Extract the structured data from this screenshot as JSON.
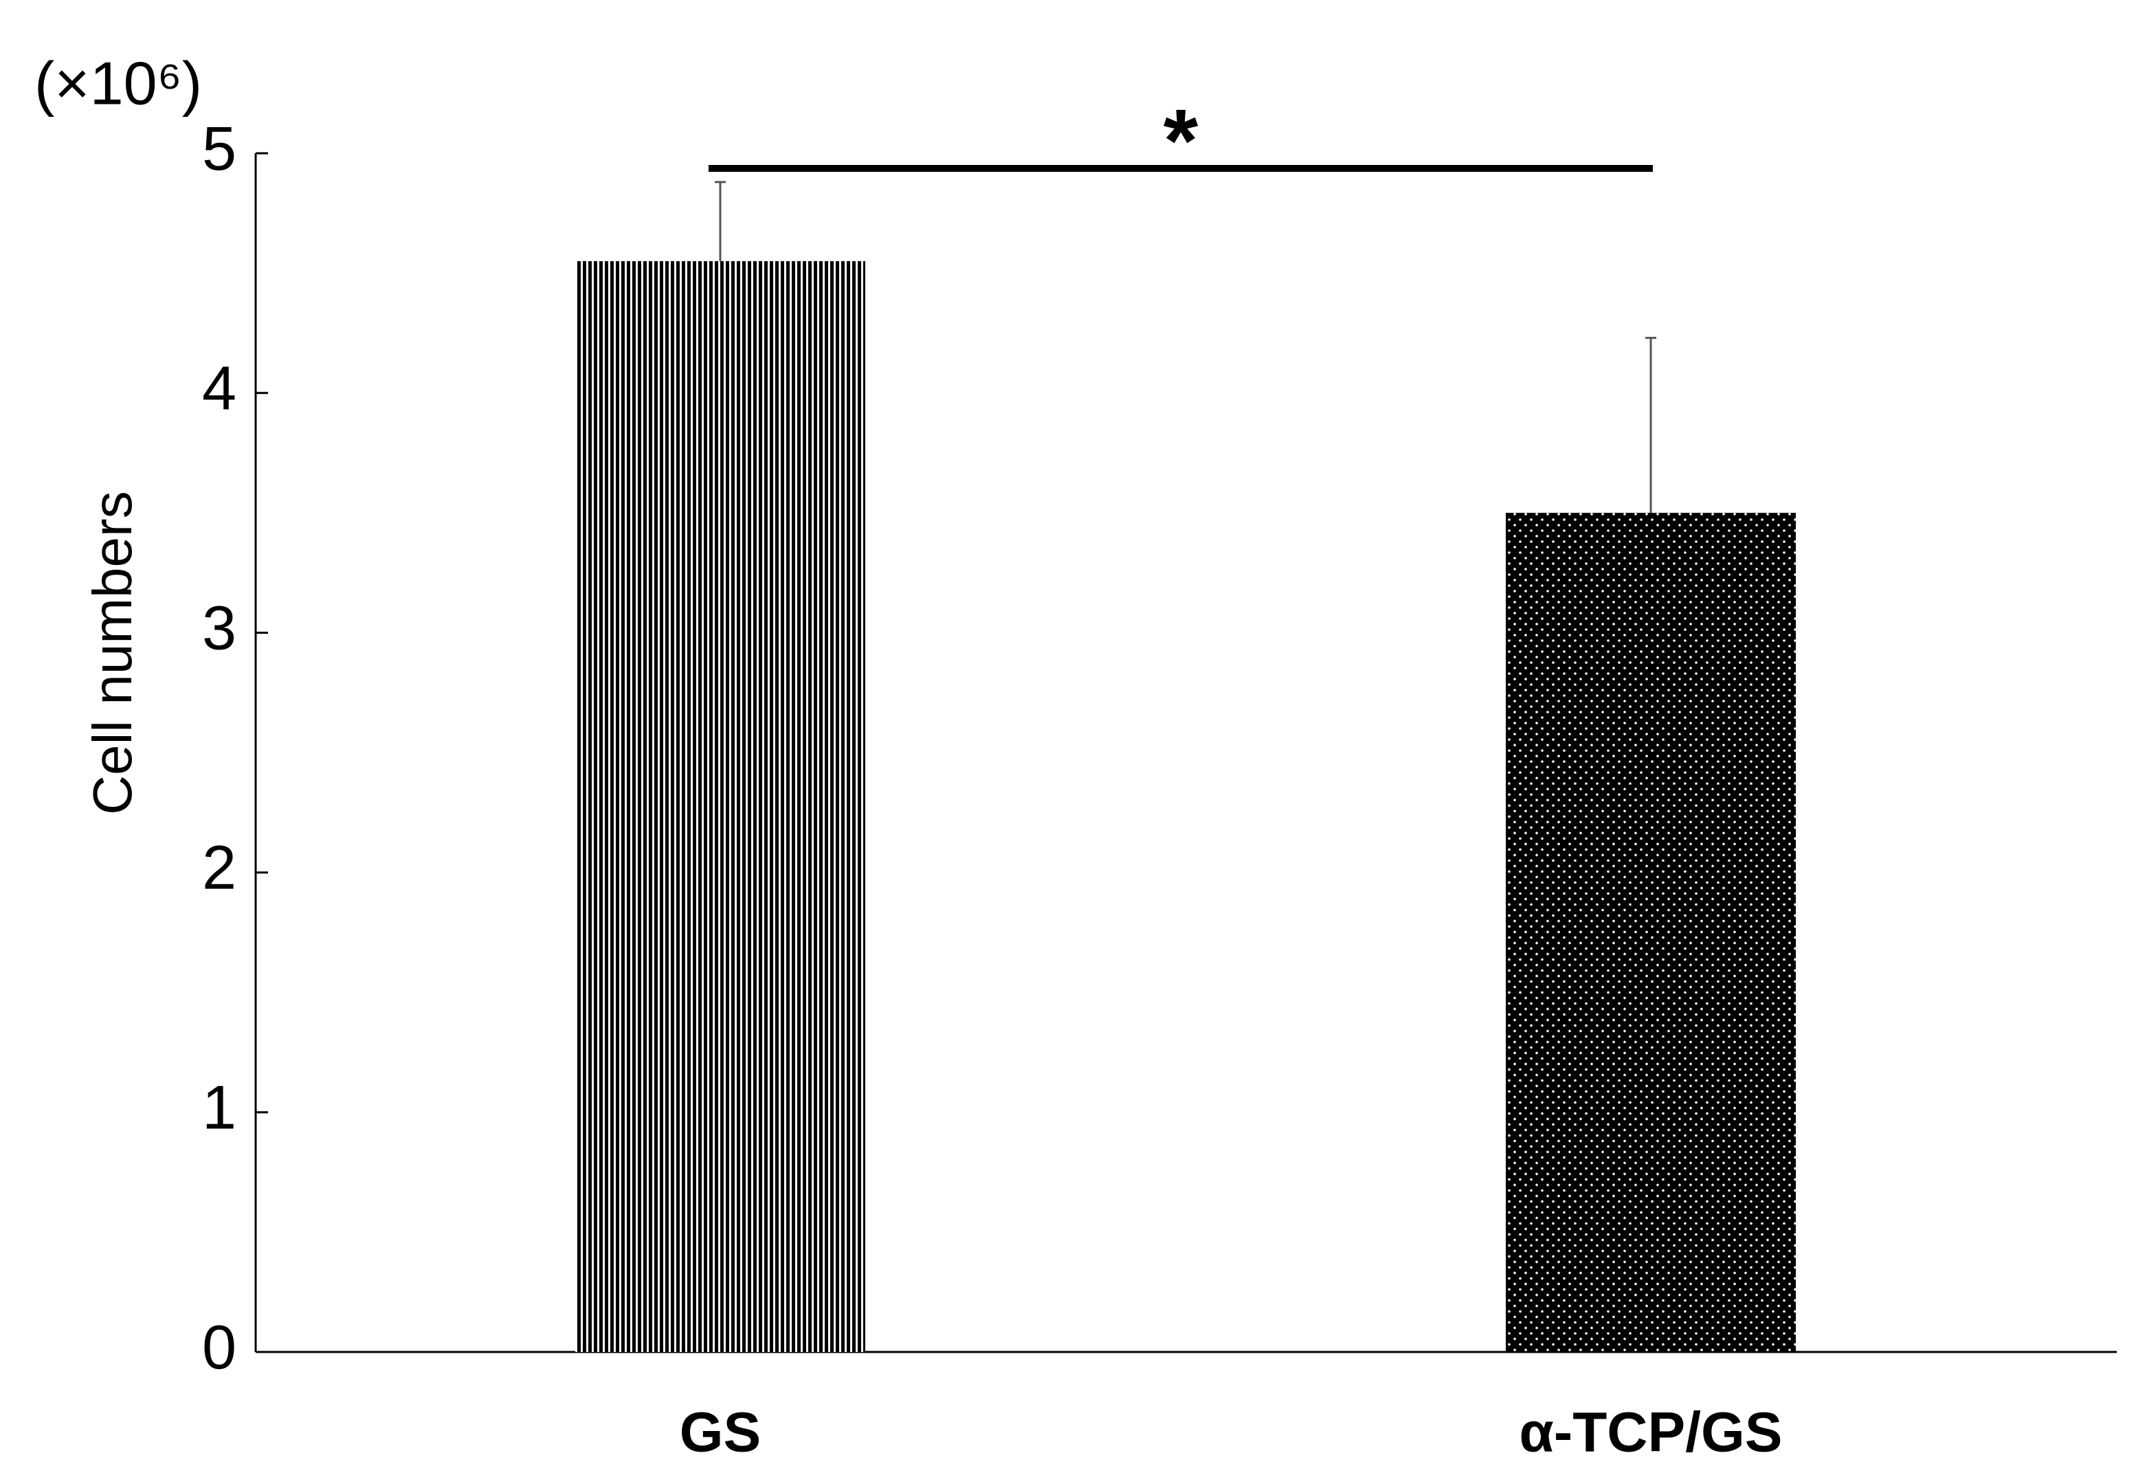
{
  "chart_data": {
    "type": "bar",
    "y_unit": "(×10⁶)",
    "ylabel": "Cell numbers",
    "categories": [
      "GS",
      "α-TCP/GS"
    ],
    "values": [
      4.55,
      3.5
    ],
    "errors": [
      0.33,
      0.73
    ],
    "ylim": [
      0,
      5
    ],
    "yticks": [
      0,
      1,
      2,
      3,
      4,
      5
    ],
    "annotations": [
      {
        "text": "*"
      }
    ]
  }
}
